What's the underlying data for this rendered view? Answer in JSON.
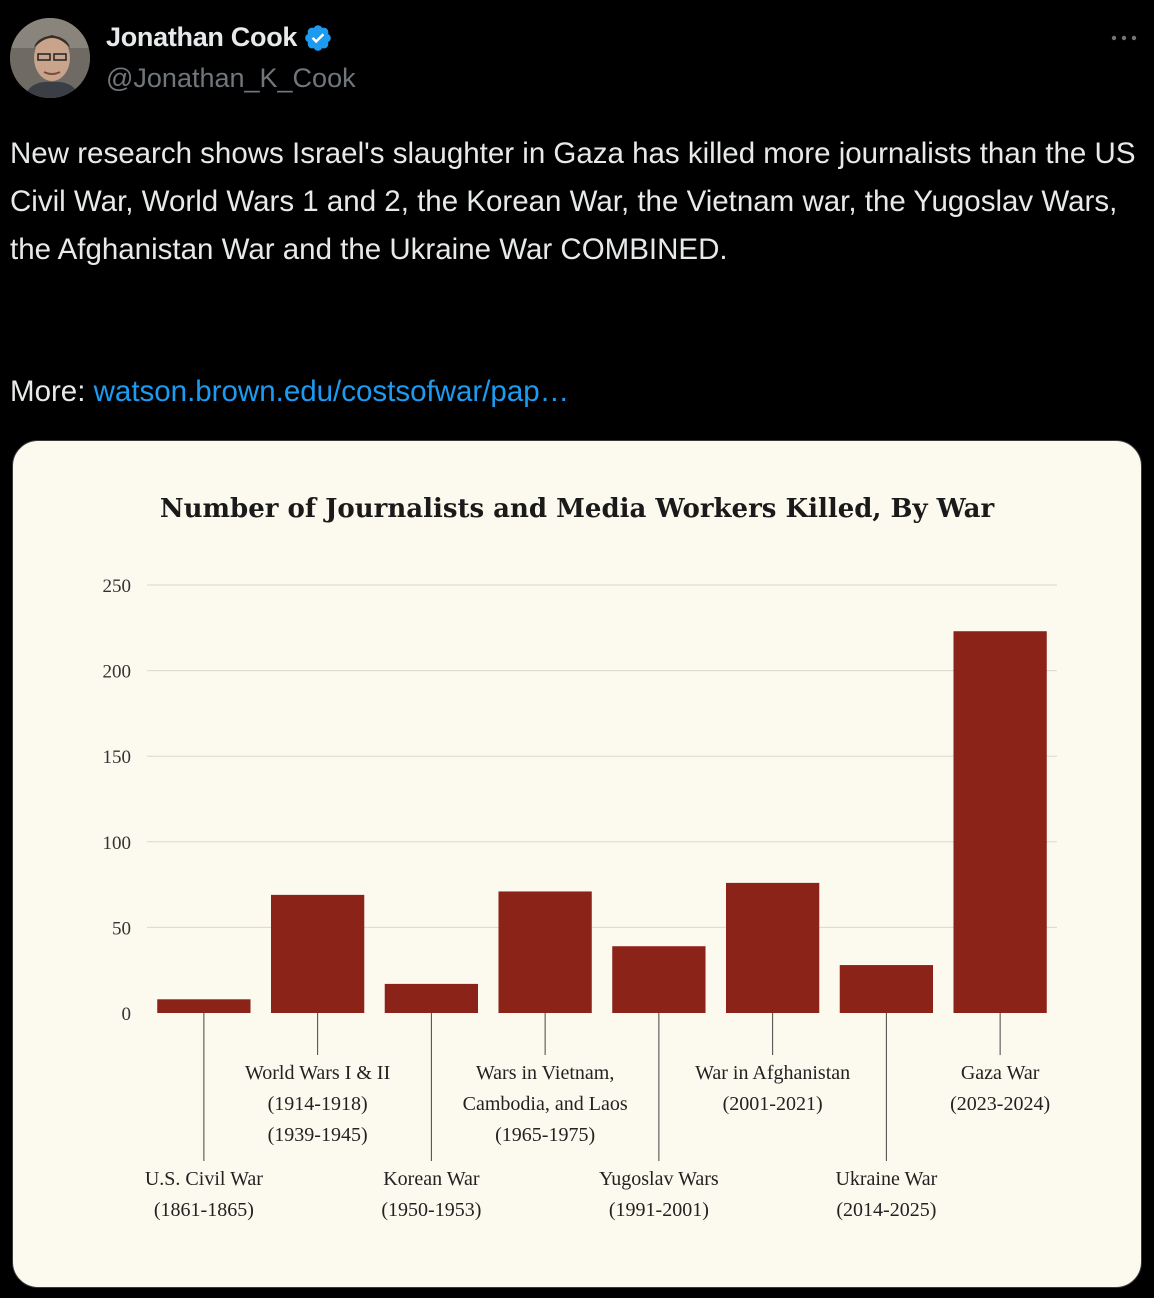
{
  "tweet": {
    "author_name": "Jonathan Cook",
    "author_handle": "@Jonathan_K_Cook",
    "text": "New research shows Israel's slaughter in Gaza has killed more journalists than the US Civil War, World Wars 1 and 2, the Korean War, the Vietnam war, the Yugoslav Wars, the Afghanistan War and the Ukraine War COMBINED.",
    "more_label": "More: ",
    "link_text": "watson.brown.edu/costsofwar/pap…"
  },
  "icons": {
    "verified": "verified-badge-icon",
    "more": "more-options-icon"
  },
  "colors": {
    "background": "#000000",
    "link": "#1d9bf0",
    "verified": "#1d9bf0",
    "bar": "#8c2318",
    "card_bg": "#fcf9ee"
  },
  "chart_data": {
    "type": "bar",
    "title": "Number of Journalists and Media Workers Killed, By War",
    "ylim": [
      0,
      250
    ],
    "yticks": [
      0,
      50,
      100,
      150,
      200,
      250
    ],
    "grid": true,
    "categories": [
      {
        "lines": [
          "U.S. Civil War",
          "(1861-1865)"
        ],
        "value": 8,
        "label_pos": "low"
      },
      {
        "lines": [
          "World Wars I & II",
          "(1914-1918)",
          "(1939-1945)"
        ],
        "value": 69,
        "label_pos": "high"
      },
      {
        "lines": [
          "Korean War",
          "(1950-1953)"
        ],
        "value": 17,
        "label_pos": "low"
      },
      {
        "lines": [
          "Wars in Vietnam,",
          "Cambodia, and Laos",
          "(1965-1975)"
        ],
        "value": 71,
        "label_pos": "high"
      },
      {
        "lines": [
          "Yugoslav Wars",
          "(1991-2001)"
        ],
        "value": 39,
        "label_pos": "low"
      },
      {
        "lines": [
          "War in Afghanistan",
          "(2001-2021)"
        ],
        "value": 76,
        "label_pos": "high"
      },
      {
        "lines": [
          "Ukraine War",
          "(2014-2025)"
        ],
        "value": 28,
        "label_pos": "low"
      },
      {
        "lines": [
          "Gaza War",
          "(2023-2024)"
        ],
        "value": 223,
        "label_pos": "high"
      }
    ]
  }
}
